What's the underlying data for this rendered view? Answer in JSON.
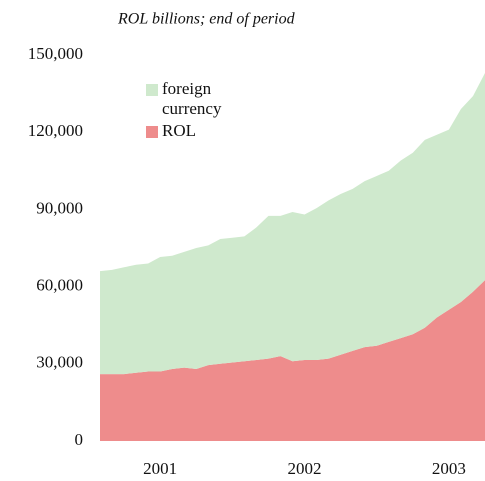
{
  "chart_data": {
    "type": "stacked_area",
    "subtitle": "ROL billions; end of period",
    "categories": [
      null,
      null,
      null,
      null,
      null,
      "2001",
      null,
      null,
      null,
      null,
      null,
      null,
      null,
      null,
      null,
      null,
      null,
      "2002",
      null,
      null,
      null,
      null,
      null,
      null,
      null,
      null,
      null,
      null,
      null,
      "2003",
      null,
      null,
      null
    ],
    "series": [
      {
        "name": "ROL",
        "color": "#ee8c8c",
        "values": [
          26000,
          26000,
          26000,
          26500,
          27000,
          27000,
          28000,
          28500,
          28000,
          29500,
          30000,
          30500,
          31000,
          31500,
          32000,
          33000,
          31000,
          31500,
          31500,
          32000,
          33500,
          35000,
          36500,
          37000,
          38500,
          40000,
          41500,
          44000,
          48000,
          51000,
          54000,
          58000,
          62500
        ]
      },
      {
        "name": "foreign currency",
        "color": "#cfe9cd",
        "values": [
          40000,
          40500,
          41500,
          42000,
          42000,
          44500,
          44000,
          45000,
          47000,
          46500,
          48500,
          48500,
          48500,
          51500,
          55500,
          54500,
          58000,
          56500,
          59000,
          61500,
          62500,
          63000,
          64500,
          66000,
          66500,
          69000,
          70500,
          73000,
          71000,
          70000,
          75000,
          76000,
          80500
        ]
      }
    ],
    "ylim": [
      0,
      150000
    ],
    "yticks": [
      0,
      {
        "value": 30000,
        "label": "30,000"
      },
      {
        "value": 60000,
        "label": "60,000"
      },
      {
        "value": 90000,
        "label": "90,000"
      },
      {
        "value": 120000,
        "label": "120,000"
      },
      {
        "value": 150000,
        "label": "150,000"
      }
    ]
  }
}
